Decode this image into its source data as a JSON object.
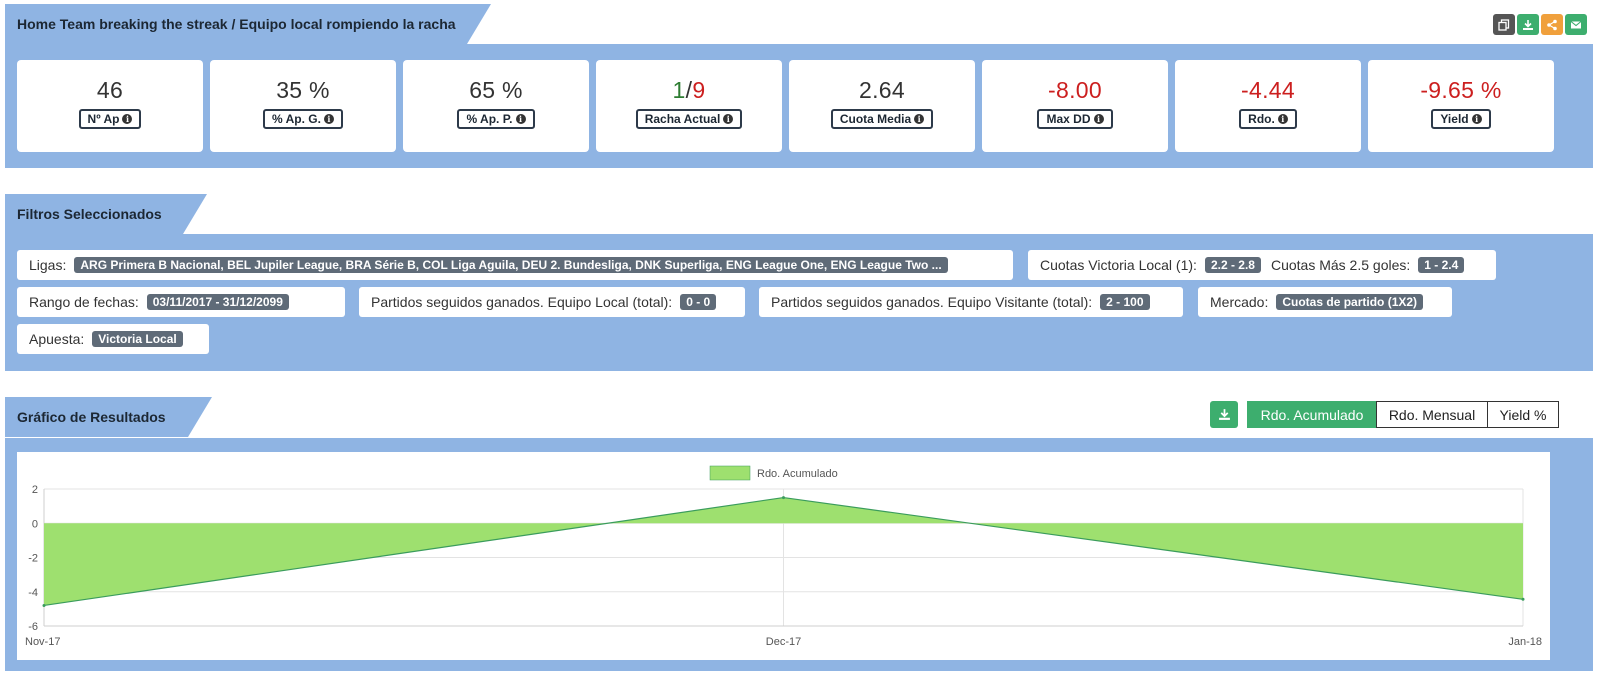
{
  "header": {
    "title": "Home Team breaking the streak / Equipo local rompiendo la racha",
    "icons": [
      {
        "name": "copy-icon",
        "color": "#555555"
      },
      {
        "name": "download-icon",
        "color": "#3dae6e"
      },
      {
        "name": "share-icon",
        "color": "#f0a03c"
      },
      {
        "name": "mail-icon",
        "color": "#3dae6e"
      }
    ]
  },
  "stats": {
    "ap": {
      "value": "46",
      "label": "Nº Ap"
    },
    "apg": {
      "value": "35 %",
      "label": "% Ap. G."
    },
    "app": {
      "value": "65 %",
      "label": "% Ap. P."
    },
    "racha": {
      "value_green": "1",
      "sep": "/",
      "value_red": "9",
      "label": "Racha Actual"
    },
    "cuota": {
      "value": "2.64",
      "label": "Cuota Media"
    },
    "maxdd": {
      "value": "-8.00",
      "label": "Max DD"
    },
    "rdo": {
      "value": "-4.44",
      "label": "Rdo."
    },
    "yield": {
      "value": "-9.65 %",
      "label": "Yield"
    }
  },
  "filters": {
    "title": "Filtros Seleccionados",
    "ligas": {
      "label": "Ligas:",
      "value": "ARG Primera B Nacional, BEL Jupiler League, BRA Série B, COL Liga Aguila, DEU 2. Bundesliga, DNK Superliga, ENG League One, ENG League Two ..."
    },
    "cuotas_local": {
      "label": "Cuotas Victoria Local (1):",
      "value": "2.2 - 2.8"
    },
    "cuotas_mas": {
      "label": "Cuotas Más 2.5 goles:",
      "value": "1 - 2.4"
    },
    "fechas": {
      "label": "Rango de fechas:",
      "value": "03/11/2017 - 31/12/2099"
    },
    "ganados_local": {
      "label": "Partidos seguidos ganados. Equipo Local (total):",
      "value": "0 - 0"
    },
    "ganados_visitante": {
      "label": "Partidos seguidos ganados. Equipo Visitante (total):",
      "value": "2 - 100"
    },
    "mercado": {
      "label": "Mercado:",
      "value": "Cuotas de partido (1X2)"
    },
    "apuesta": {
      "label": "Apuesta:",
      "value": "Victoria Local"
    }
  },
  "results": {
    "title": "Gráfico de Resultados",
    "toggles": {
      "acumulado": "Rdo. Acumulado",
      "mensual": "Rdo. Mensual",
      "yield": "Yield %"
    }
  },
  "colors": {
    "panel": "#8fb4e3",
    "accent": "#3dae6e",
    "negative": "#cc1f1f",
    "fill": "#9ee06f",
    "line": "#3a9c5c"
  },
  "chart_data": {
    "type": "area",
    "categories": [
      "Nov-17",
      "Dec-17",
      "Jan-18"
    ],
    "series": [
      {
        "name": "Rdo. Acumulado",
        "values": [
          -4.8,
          1.5,
          -4.44
        ]
      }
    ],
    "ylim": [
      -6,
      2
    ],
    "yticks": [
      "2",
      "0",
      "-2",
      "-4",
      "-6"
    ],
    "grid": true,
    "legend": "top-center"
  }
}
